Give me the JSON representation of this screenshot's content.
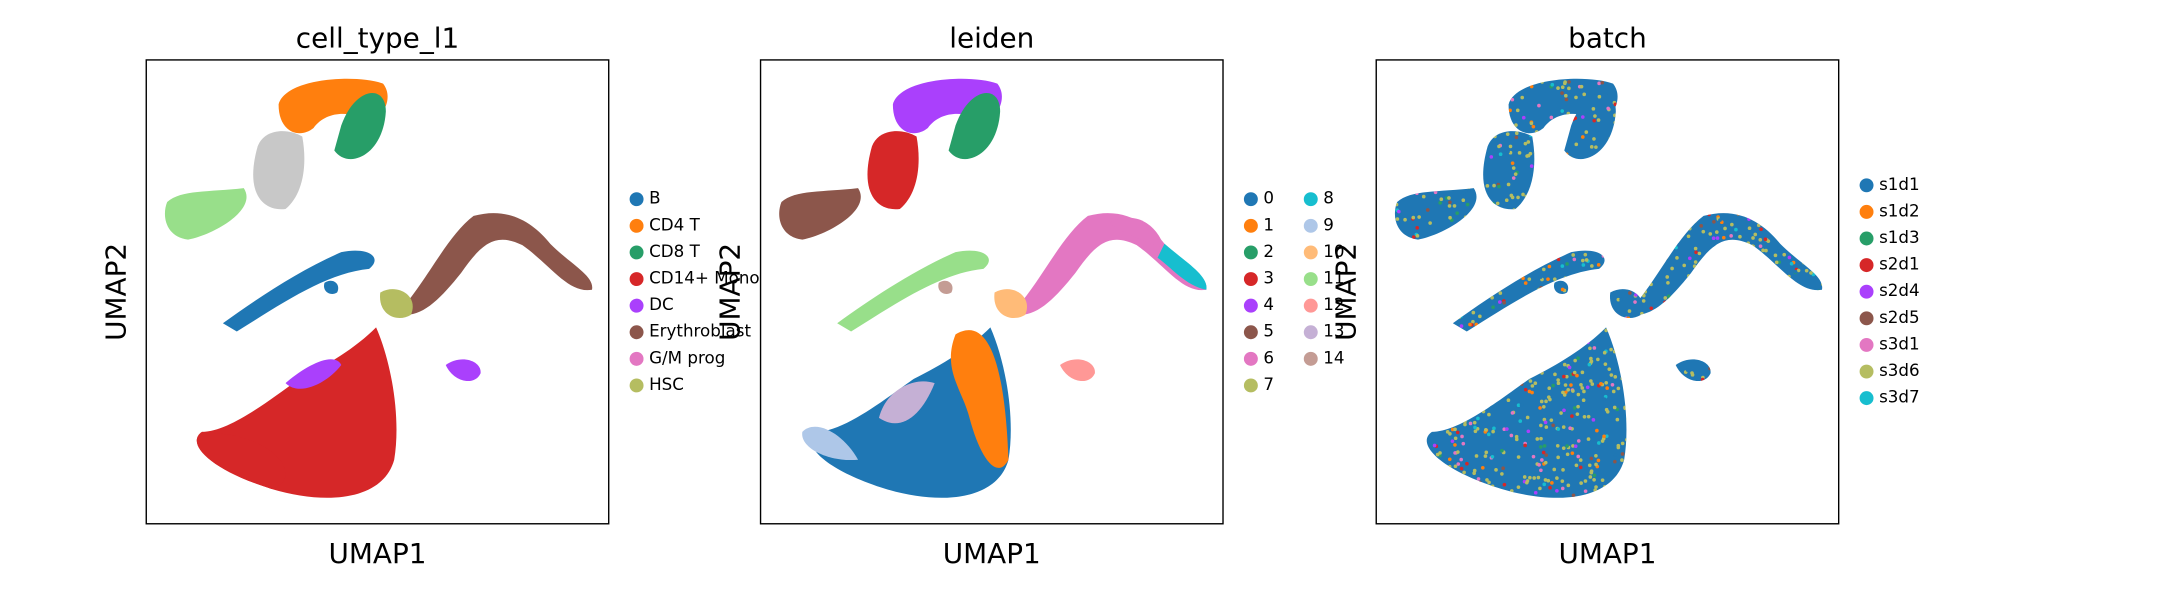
{
  "chart_data": [
    {
      "type": "scatter",
      "title": "cell_type_l1",
      "xlabel": "UMAP1",
      "ylabel": "UMAP2",
      "categories": [
        "B",
        "CD4 T",
        "CD8 T",
        "CD14+ Mono",
        "DC",
        "Erythroblast",
        "G/M prog",
        "HSC"
      ],
      "colors": [
        "#1f77b4",
        "#ff7f0e",
        "#279e68",
        "#d62728",
        "#aa40fc",
        "#8c564b",
        "#e377c2",
        "#b5bd61"
      ]
    },
    {
      "type": "scatter",
      "title": "leiden",
      "xlabel": "UMAP1",
      "ylabel": "UMAP2",
      "categories": [
        "0",
        "1",
        "2",
        "3",
        "4",
        "5",
        "6",
        "7",
        "8",
        "9",
        "10",
        "11",
        "12",
        "13",
        "14"
      ],
      "colors": [
        "#1f77b4",
        "#ff7f0e",
        "#279e68",
        "#d62728",
        "#aa40fc",
        "#8c564b",
        "#e377c2",
        "#b5bd61",
        "#17becf",
        "#aec7e8",
        "#ffbb78",
        "#98df8a",
        "#ff9896",
        "#c5b0d5",
        "#c49c94"
      ]
    },
    {
      "type": "scatter",
      "title": "batch",
      "xlabel": "UMAP1",
      "ylabel": "UMAP2",
      "categories": [
        "s1d1",
        "s1d2",
        "s1d3",
        "s2d1",
        "s2d4",
        "s2d5",
        "s3d1",
        "s3d6",
        "s3d7"
      ],
      "colors": [
        "#1f77b4",
        "#ff7f0e",
        "#279e68",
        "#d62728",
        "#aa40fc",
        "#8c564b",
        "#e377c2",
        "#b5bd61",
        "#17becf"
      ]
    }
  ]
}
